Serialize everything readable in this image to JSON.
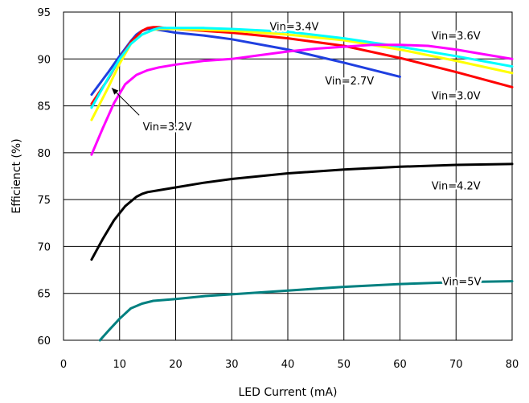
{
  "chart_data": {
    "type": "line",
    "xlabel": "LED Current (mA)",
    "ylabel": "Efficienct (%)",
    "xlim": [
      0,
      80
    ],
    "ylim": [
      60,
      95
    ],
    "xticks": [
      "0",
      "10",
      "20",
      "30",
      "40",
      "50",
      "60",
      "70",
      "80"
    ],
    "yticks": [
      "60",
      "65",
      "70",
      "75",
      "80",
      "85",
      "90",
      "95"
    ],
    "grid": true,
    "series": [
      {
        "name": "Vin=2.7V",
        "color": "#1f3fe0",
        "x": [
          5,
          8,
          10,
          12,
          13,
          14,
          15,
          16,
          17,
          18,
          20,
          25,
          30,
          40,
          50,
          60
        ],
        "y": [
          86.2,
          88.6,
          90.3,
          91.9,
          92.6,
          93.0,
          93.2,
          93.2,
          93.1,
          93.0,
          92.8,
          92.5,
          92.1,
          91.0,
          89.6,
          88.1
        ]
      },
      {
        "name": "Vin=3.0V",
        "color": "#ff0000",
        "x": [
          5,
          8,
          10,
          12,
          14,
          15,
          16,
          17,
          18,
          20,
          25,
          30,
          40,
          50,
          60,
          70,
          80
        ],
        "y": [
          85.2,
          87.9,
          90.0,
          91.8,
          93.0,
          93.3,
          93.4,
          93.4,
          93.3,
          93.2,
          93.0,
          92.8,
          92.2,
          91.4,
          90.1,
          88.6,
          87.0
        ]
      },
      {
        "name": "Vin=3.2V",
        "color": "#ffff00",
        "x": [
          5,
          8,
          10,
          12,
          14,
          16,
          17,
          18,
          20,
          25,
          30,
          40,
          50,
          60,
          70,
          80
        ],
        "y": [
          83.5,
          87.0,
          89.5,
          91.6,
          92.6,
          93.1,
          93.2,
          93.2,
          93.2,
          93.1,
          93.0,
          92.6,
          92.0,
          91.0,
          89.8,
          88.5
        ]
      },
      {
        "name": "Vin=3.4V",
        "color": "#00ffff",
        "x": [
          5,
          8,
          10,
          12,
          14,
          16,
          17,
          18,
          20,
          25,
          30,
          40,
          50,
          60,
          70,
          80
        ],
        "y": [
          84.8,
          88.0,
          90.0,
          91.6,
          92.6,
          93.1,
          93.3,
          93.3,
          93.3,
          93.3,
          93.2,
          92.9,
          92.2,
          91.3,
          90.3,
          89.2
        ]
      },
      {
        "name": "Vin=3.6V",
        "color": "#ff00ff",
        "x": [
          5,
          7,
          9,
          11,
          13,
          15,
          17,
          20,
          25,
          30,
          35,
          40,
          45,
          50,
          55,
          60,
          65,
          70,
          75,
          80
        ],
        "y": [
          79.8,
          82.6,
          85.3,
          87.3,
          88.3,
          88.8,
          89.1,
          89.4,
          89.8,
          90.0,
          90.4,
          90.8,
          91.1,
          91.3,
          91.5,
          91.5,
          91.4,
          91.0,
          90.5,
          90.0
        ]
      },
      {
        "name": "Vin=4.2V",
        "color": "#000000",
        "x": [
          5,
          7,
          9,
          11,
          13,
          14,
          15,
          17,
          20,
          25,
          30,
          40,
          50,
          60,
          70,
          80
        ],
        "y": [
          68.6,
          70.8,
          72.8,
          74.3,
          75.3,
          75.6,
          75.8,
          76.0,
          76.3,
          76.8,
          77.2,
          77.8,
          78.2,
          78.5,
          78.7,
          78.8
        ]
      },
      {
        "name": "Vin=5V",
        "color": "#008080",
        "x": [
          6.5,
          8,
          10,
          12,
          14,
          16,
          18,
          20,
          25,
          30,
          40,
          50,
          60,
          70,
          80
        ],
        "y": [
          60.0,
          61.0,
          62.3,
          63.4,
          63.9,
          64.2,
          64.3,
          64.4,
          64.7,
          64.9,
          65.3,
          65.7,
          66.0,
          66.2,
          66.3
        ]
      }
    ],
    "annotations": [
      {
        "text": "Vin=3.4V",
        "x": 45.5,
        "y": 93.5,
        "anchor": "end"
      },
      {
        "text": "Vin=3.6V",
        "x": 70.0,
        "y": 92.5,
        "anchor": "middle"
      },
      {
        "text": "Vin=2.7V",
        "x": 51.0,
        "y": 87.7,
        "anchor": "middle"
      },
      {
        "text": "Vin=3.0V",
        "x": 70.0,
        "y": 86.1,
        "anchor": "middle"
      },
      {
        "text": "Vin=3.2V",
        "x": 18.5,
        "y": 82.8,
        "anchor": "middle"
      },
      {
        "text": "Vin=4.2V",
        "x": 70.0,
        "y": 76.5,
        "anchor": "middle"
      },
      {
        "text": "Vin=5V",
        "x": 71.0,
        "y": 66.3,
        "anchor": "middle"
      }
    ],
    "arrow": {
      "from": [
        13.5,
        84.0
      ],
      "to": [
        8.6,
        86.9
      ]
    }
  }
}
